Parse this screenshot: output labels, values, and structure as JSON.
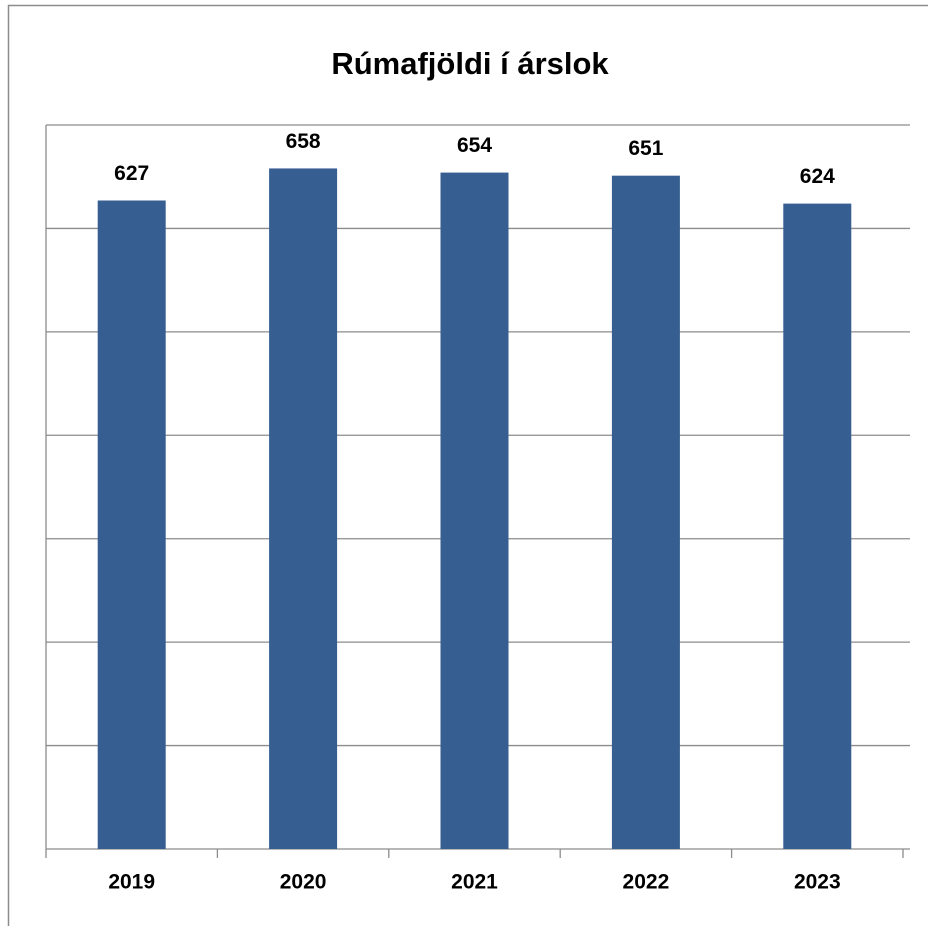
{
  "chart_data": {
    "type": "bar",
    "title": "Rúmafjöldi í árslok",
    "categories": [
      "2019",
      "2020",
      "2021",
      "2022",
      "2023"
    ],
    "values": [
      627,
      658,
      654,
      651,
      624
    ],
    "color": "#375e91",
    "ylim": [
      0,
      700
    ],
    "yticks": [
      0,
      100,
      200,
      300,
      400,
      500,
      600,
      700
    ],
    "grid": true
  }
}
